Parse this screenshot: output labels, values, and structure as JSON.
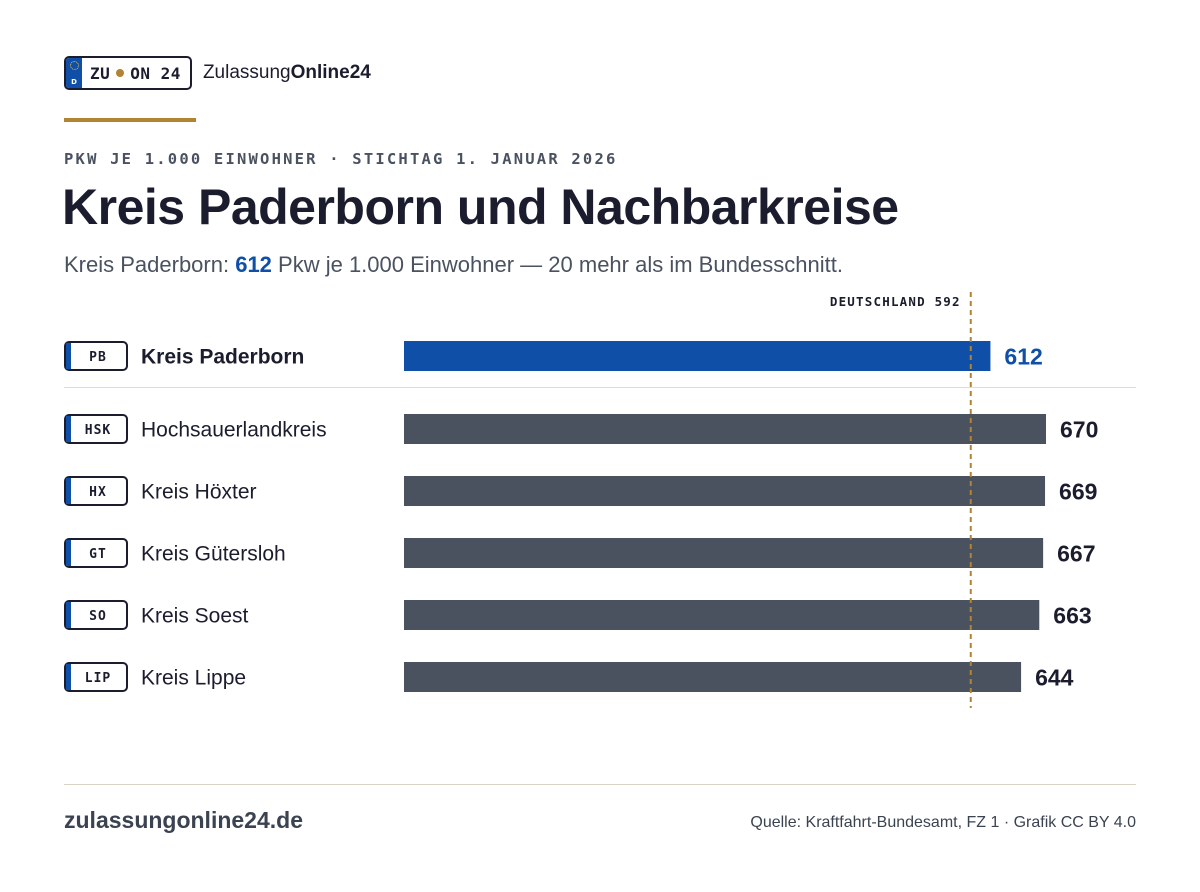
{
  "brand": {
    "plate_left": "ZU",
    "plate_right": "ON 24",
    "plate_country": "D",
    "name_regular": "Zulassung",
    "name_bold": "Online24"
  },
  "kicker": "PKW JE 1.000 EINWOHNER · STICHTAG 1. JANUAR 2026",
  "title": "Kreis Paderborn und Nachbarkreise",
  "subtitle": {
    "prefix": "Kreis Paderborn: ",
    "value": "612",
    "suffix": " Pkw je 1.000 Einwohner — 20 mehr als im Bundesschnitt."
  },
  "colors": {
    "highlight": "#0f4fa8",
    "bar": "#4a5260",
    "reference": "#b08433",
    "text": "#1b1d2e"
  },
  "chart_data": {
    "type": "bar",
    "orientation": "horizontal",
    "categories": [
      "Kreis Paderborn",
      "Hochsauerlandkreis",
      "Kreis Höxter",
      "Kreis Gütersloh",
      "Kreis Soest",
      "Kreis Lippe"
    ],
    "codes": [
      "PB",
      "HSK",
      "HX",
      "GT",
      "SO",
      "LIP"
    ],
    "values": [
      612,
      670,
      669,
      667,
      663,
      644
    ],
    "value_labels": [
      "612",
      "670",
      "669",
      "667",
      "663",
      "644"
    ],
    "highlight_index": 0,
    "reference": {
      "label": "DEUTSCHLAND 592",
      "value": 592
    },
    "xlim": [
      0,
      700
    ],
    "grid": false,
    "legend": "none"
  },
  "footer": {
    "site": "zulassungonline24.de",
    "source": "Quelle: Kraftfahrt-Bundesamt, FZ 1 · Grafik CC BY 4.0"
  }
}
